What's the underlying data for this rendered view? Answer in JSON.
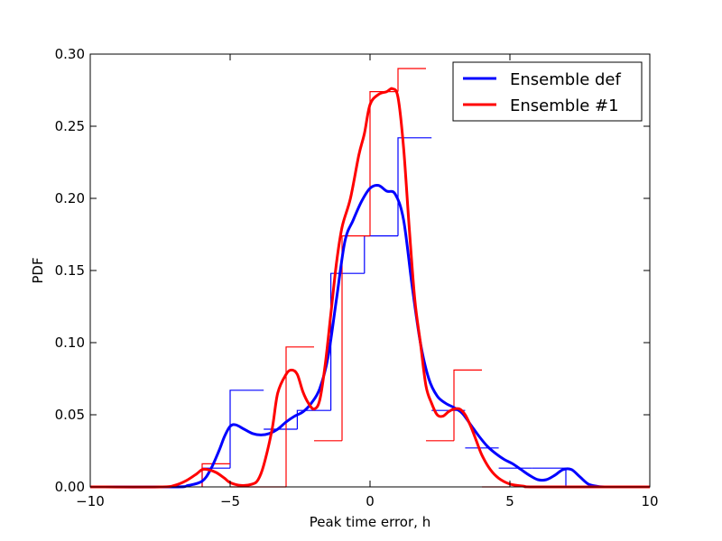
{
  "chart_data": {
    "type": "line",
    "xlabel": "Peak time error, h",
    "ylabel": "PDF",
    "xlim": [
      -10,
      10
    ],
    "ylim": [
      0,
      0.3
    ],
    "xticks": [
      -10,
      -5,
      0,
      5,
      10
    ],
    "xtick_labels": [
      "−10",
      "−5",
      "0",
      "5",
      "10"
    ],
    "yticks": [
      0.0,
      0.05,
      0.1,
      0.15,
      0.2,
      0.25,
      0.3
    ],
    "ytick_labels": [
      "0.00",
      "0.05",
      "0.10",
      "0.15",
      "0.20",
      "0.25",
      "0.30"
    ],
    "grid": false,
    "legend_position": "top-right",
    "series": [
      {
        "name": "Ensemble def",
        "color": "#0000ff",
        "kde": {
          "x": [
            -10,
            -7,
            -6.5,
            -6,
            -5.7,
            -5.4,
            -5.2,
            -5,
            -4.8,
            -4.5,
            -4.2,
            -3.9,
            -3.6,
            -3.3,
            -3,
            -2.7,
            -2.4,
            -2.1,
            -1.8,
            -1.5,
            -1.2,
            -0.9,
            -0.6,
            -0.3,
            0,
            0.3,
            0.6,
            0.9,
            1.2,
            1.5,
            1.8,
            2.1,
            2.4,
            2.7,
            3,
            3.3,
            3.6,
            3.9,
            4.2,
            4.5,
            4.8,
            5.1,
            5.4,
            5.7,
            6,
            6.3,
            6.6,
            6.9,
            7.2,
            7.5,
            7.8,
            8.1,
            8.5,
            10
          ],
          "y": [
            0,
            0,
            0.001,
            0.004,
            0.012,
            0.025,
            0.035,
            0.042,
            0.043,
            0.04,
            0.037,
            0.036,
            0.037,
            0.04,
            0.045,
            0.049,
            0.052,
            0.058,
            0.068,
            0.09,
            0.13,
            0.17,
            0.185,
            0.198,
            0.207,
            0.209,
            0.205,
            0.203,
            0.185,
            0.14,
            0.1,
            0.075,
            0.063,
            0.058,
            0.055,
            0.051,
            0.043,
            0.035,
            0.028,
            0.023,
            0.019,
            0.016,
            0.012,
            0.008,
            0.005,
            0.005,
            0.008,
            0.012,
            0.012,
            0.007,
            0.002,
            0.0005,
            0,
            0
          ]
        },
        "histogram": {
          "edges": [
            -6,
            -5,
            -3.8,
            -2.6,
            -1.4,
            -0.2,
            1,
            2.2,
            3.4,
            4.6,
            5.8,
            7
          ],
          "values": [
            0.013,
            0.067,
            0.04,
            0.053,
            0.148,
            0.174,
            0.242,
            0.053,
            0.027,
            0.013,
            0.013
          ]
        }
      },
      {
        "name": "Ensemble #1",
        "color": "#ff0000",
        "kde": {
          "x": [
            -10,
            -7.5,
            -7,
            -6.6,
            -6.2,
            -6,
            -5.8,
            -5.5,
            -5.2,
            -5,
            -4.6,
            -4.2,
            -4,
            -3.8,
            -3.5,
            -3.3,
            -3,
            -2.8,
            -2.6,
            -2.4,
            -2.2,
            -2,
            -1.8,
            -1.6,
            -1.4,
            -1.2,
            -1,
            -0.7,
            -0.4,
            -0.2,
            0,
            0.3,
            0.6,
            0.8,
            1,
            1.2,
            1.4,
            1.6,
            1.8,
            2,
            2.2,
            2.4,
            2.6,
            2.8,
            3,
            3.2,
            3.4,
            3.6,
            3.8,
            4,
            4.3,
            4.6,
            5,
            5.5,
            6,
            10
          ],
          "y": [
            0,
            0,
            0.001,
            0.004,
            0.009,
            0.012,
            0.012,
            0.01,
            0.006,
            0.003,
            0.001,
            0.002,
            0.005,
            0.015,
            0.04,
            0.065,
            0.078,
            0.081,
            0.078,
            0.066,
            0.058,
            0.054,
            0.06,
            0.085,
            0.12,
            0.155,
            0.18,
            0.2,
            0.23,
            0.245,
            0.265,
            0.272,
            0.274,
            0.276,
            0.27,
            0.235,
            0.18,
            0.13,
            0.1,
            0.07,
            0.058,
            0.05,
            0.049,
            0.052,
            0.054,
            0.054,
            0.05,
            0.042,
            0.032,
            0.022,
            0.012,
            0.006,
            0.002,
            0.0005,
            0,
            0
          ]
        },
        "histogram": {
          "edges": [
            -6,
            -5,
            -4,
            -3,
            -2,
            -1,
            0,
            1,
            2,
            3,
            4,
            5
          ],
          "values": [
            0.016,
            0,
            0,
            0.097,
            0.032,
            0.174,
            0.274,
            0.29,
            0.032,
            0.081,
            0
          ]
        }
      }
    ]
  }
}
